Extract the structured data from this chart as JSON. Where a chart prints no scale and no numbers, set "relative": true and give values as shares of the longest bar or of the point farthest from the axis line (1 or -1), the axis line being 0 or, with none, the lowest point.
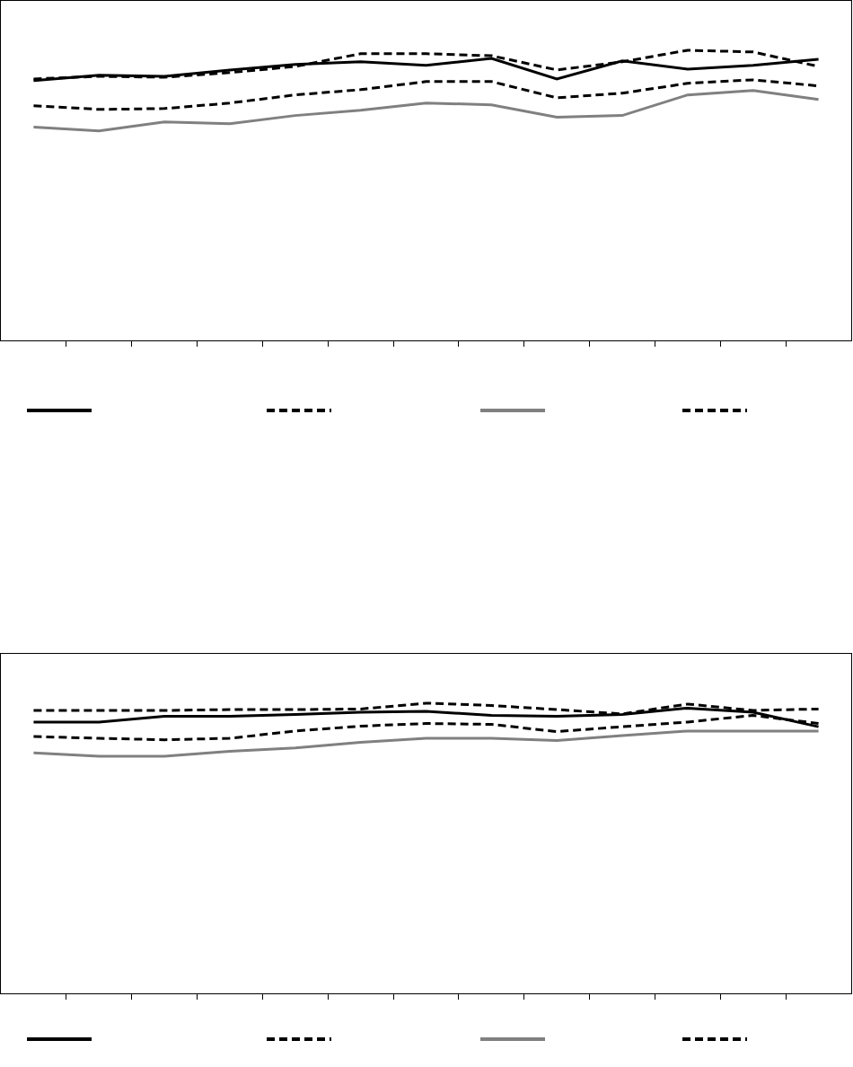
{
  "chart_data": [
    {
      "type": "line",
      "relative": true,
      "categories": [
        null,
        null,
        null,
        null,
        null,
        null,
        null,
        null,
        null,
        null,
        null,
        null,
        null
      ],
      "grid": false,
      "marker": "none",
      "series": [
        {
          "color": "#000000",
          "line_style": "solid",
          "values": [
            0.895,
            0.914,
            0.91,
            0.932,
            0.951,
            0.96,
            0.948,
            0.972,
            0.901,
            0.963,
            0.935,
            0.948,
            0.969
          ]
        },
        {
          "color": "#000000",
          "line_style": "dashed",
          "values": [
            0.901,
            0.91,
            0.907,
            0.923,
            0.944,
            0.988,
            0.988,
            0.981,
            0.932,
            0.96,
            1,
            0.994,
            0.944
          ]
        },
        {
          "color": "#808080",
          "line_style": "solid",
          "values": [
            0.735,
            0.722,
            0.753,
            0.747,
            0.775,
            0.793,
            0.818,
            0.812,
            0.769,
            0.775,
            0.846,
            0.861,
            0.83
          ]
        },
        {
          "color": "#000000",
          "line_style": "dashed",
          "values": [
            0.809,
            0.796,
            0.799,
            0.818,
            0.846,
            0.864,
            0.892,
            0.892,
            0.836,
            0.852,
            0.886,
            0.898,
            0.877
          ]
        }
      ]
    },
    {
      "type": "line",
      "relative": true,
      "categories": [
        null,
        null,
        null,
        null,
        null,
        null,
        null,
        null,
        null,
        null,
        null,
        null,
        null
      ],
      "grid": false,
      "marker": "none",
      "series": [
        {
          "color": "#000000",
          "line_style": "solid",
          "values": [
            0.935,
            0.935,
            0.955,
            0.955,
            0.961,
            0.969,
            0.972,
            0.958,
            0.955,
            0.961,
            0.983,
            0.969,
            0.919
          ]
        },
        {
          "color": "#000000",
          "line_style": "dashed",
          "values": [
            0.975,
            0.975,
            0.975,
            0.978,
            0.978,
            0.98,
            1,
            0.992,
            0.978,
            0.963,
            0.997,
            0.975,
            0.98
          ]
        },
        {
          "color": "#808080",
          "line_style": "solid",
          "values": [
            0.829,
            0.817,
            0.817,
            0.834,
            0.846,
            0.865,
            0.879,
            0.879,
            0.871,
            0.888,
            0.904,
            0.904,
            0.904
          ]
        },
        {
          "color": "#000000",
          "line_style": "dashed",
          "values": [
            0.885,
            0.879,
            0.874,
            0.879,
            0.904,
            0.921,
            0.93,
            0.927,
            0.902,
            0.919,
            0.935,
            0.958,
            0.93
          ]
        }
      ]
    }
  ]
}
